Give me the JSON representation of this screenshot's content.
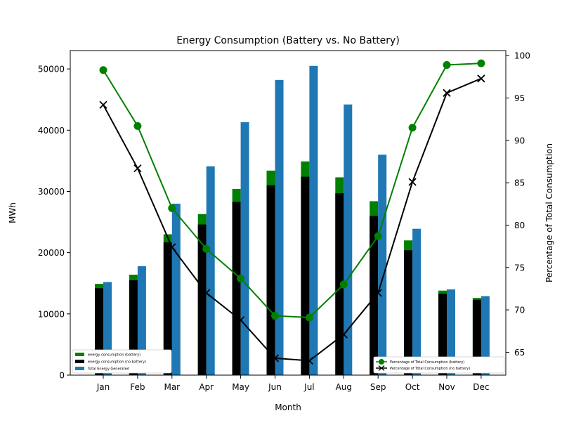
{
  "chart_data": {
    "type": "bar",
    "title": "Energy Consumption (Battery vs. No Battery)",
    "xlabel": "Month",
    "ylabel": "MWh",
    "y2label": "Percentage of Total Consumption",
    "categories": [
      "Jan",
      "Feb",
      "Mar",
      "Apr",
      "May",
      "Jun",
      "Jul",
      "Aug",
      "Sep",
      "Oct",
      "Nov",
      "Dec"
    ],
    "ylim": [
      0,
      53000
    ],
    "y2lim": [
      62.3,
      100.6
    ],
    "yticks": [
      0,
      10000,
      20000,
      30000,
      40000,
      50000
    ],
    "y2ticks": [
      65,
      70,
      75,
      80,
      85,
      90,
      95,
      100
    ],
    "grid": false,
    "bar_series": [
      {
        "name": "energy consumption (battery)",
        "color": "#008000",
        "values": [
          14900,
          16400,
          23000,
          26300,
          30400,
          33400,
          34900,
          32300,
          28400,
          22000,
          13800,
          12600
        ]
      },
      {
        "name": "energy consumption (no battery)",
        "color": "#000000",
        "values": [
          14200,
          15500,
          21700,
          24600,
          28300,
          31000,
          32400,
          29700,
          26000,
          20400,
          13300,
          12300
        ]
      },
      {
        "name": "Total Energy Generated",
        "color": "#1f77b4",
        "values": [
          15200,
          17800,
          28000,
          34100,
          41300,
          48200,
          50500,
          44200,
          36000,
          23900,
          14000,
          12900
        ]
      }
    ],
    "line_series": [
      {
        "name": "Percentage of Total Consumption (battery)",
        "color": "#008000",
        "marker": "circle",
        "values": [
          98.3,
          91.7,
          82.0,
          77.2,
          73.7,
          69.3,
          69.1,
          73.0,
          78.7,
          91.5,
          98.9,
          99.1
        ]
      },
      {
        "name": "Percentage of Total Consumption (no battery)",
        "color": "#000000",
        "marker": "x",
        "values": [
          94.2,
          86.7,
          77.4,
          72.0,
          68.8,
          64.3,
          64.0,
          67.1,
          72.0,
          85.1,
          95.6,
          97.3
        ]
      }
    ],
    "legend_left_placement": "lower-left",
    "legend_right_placement": "lower-right"
  }
}
